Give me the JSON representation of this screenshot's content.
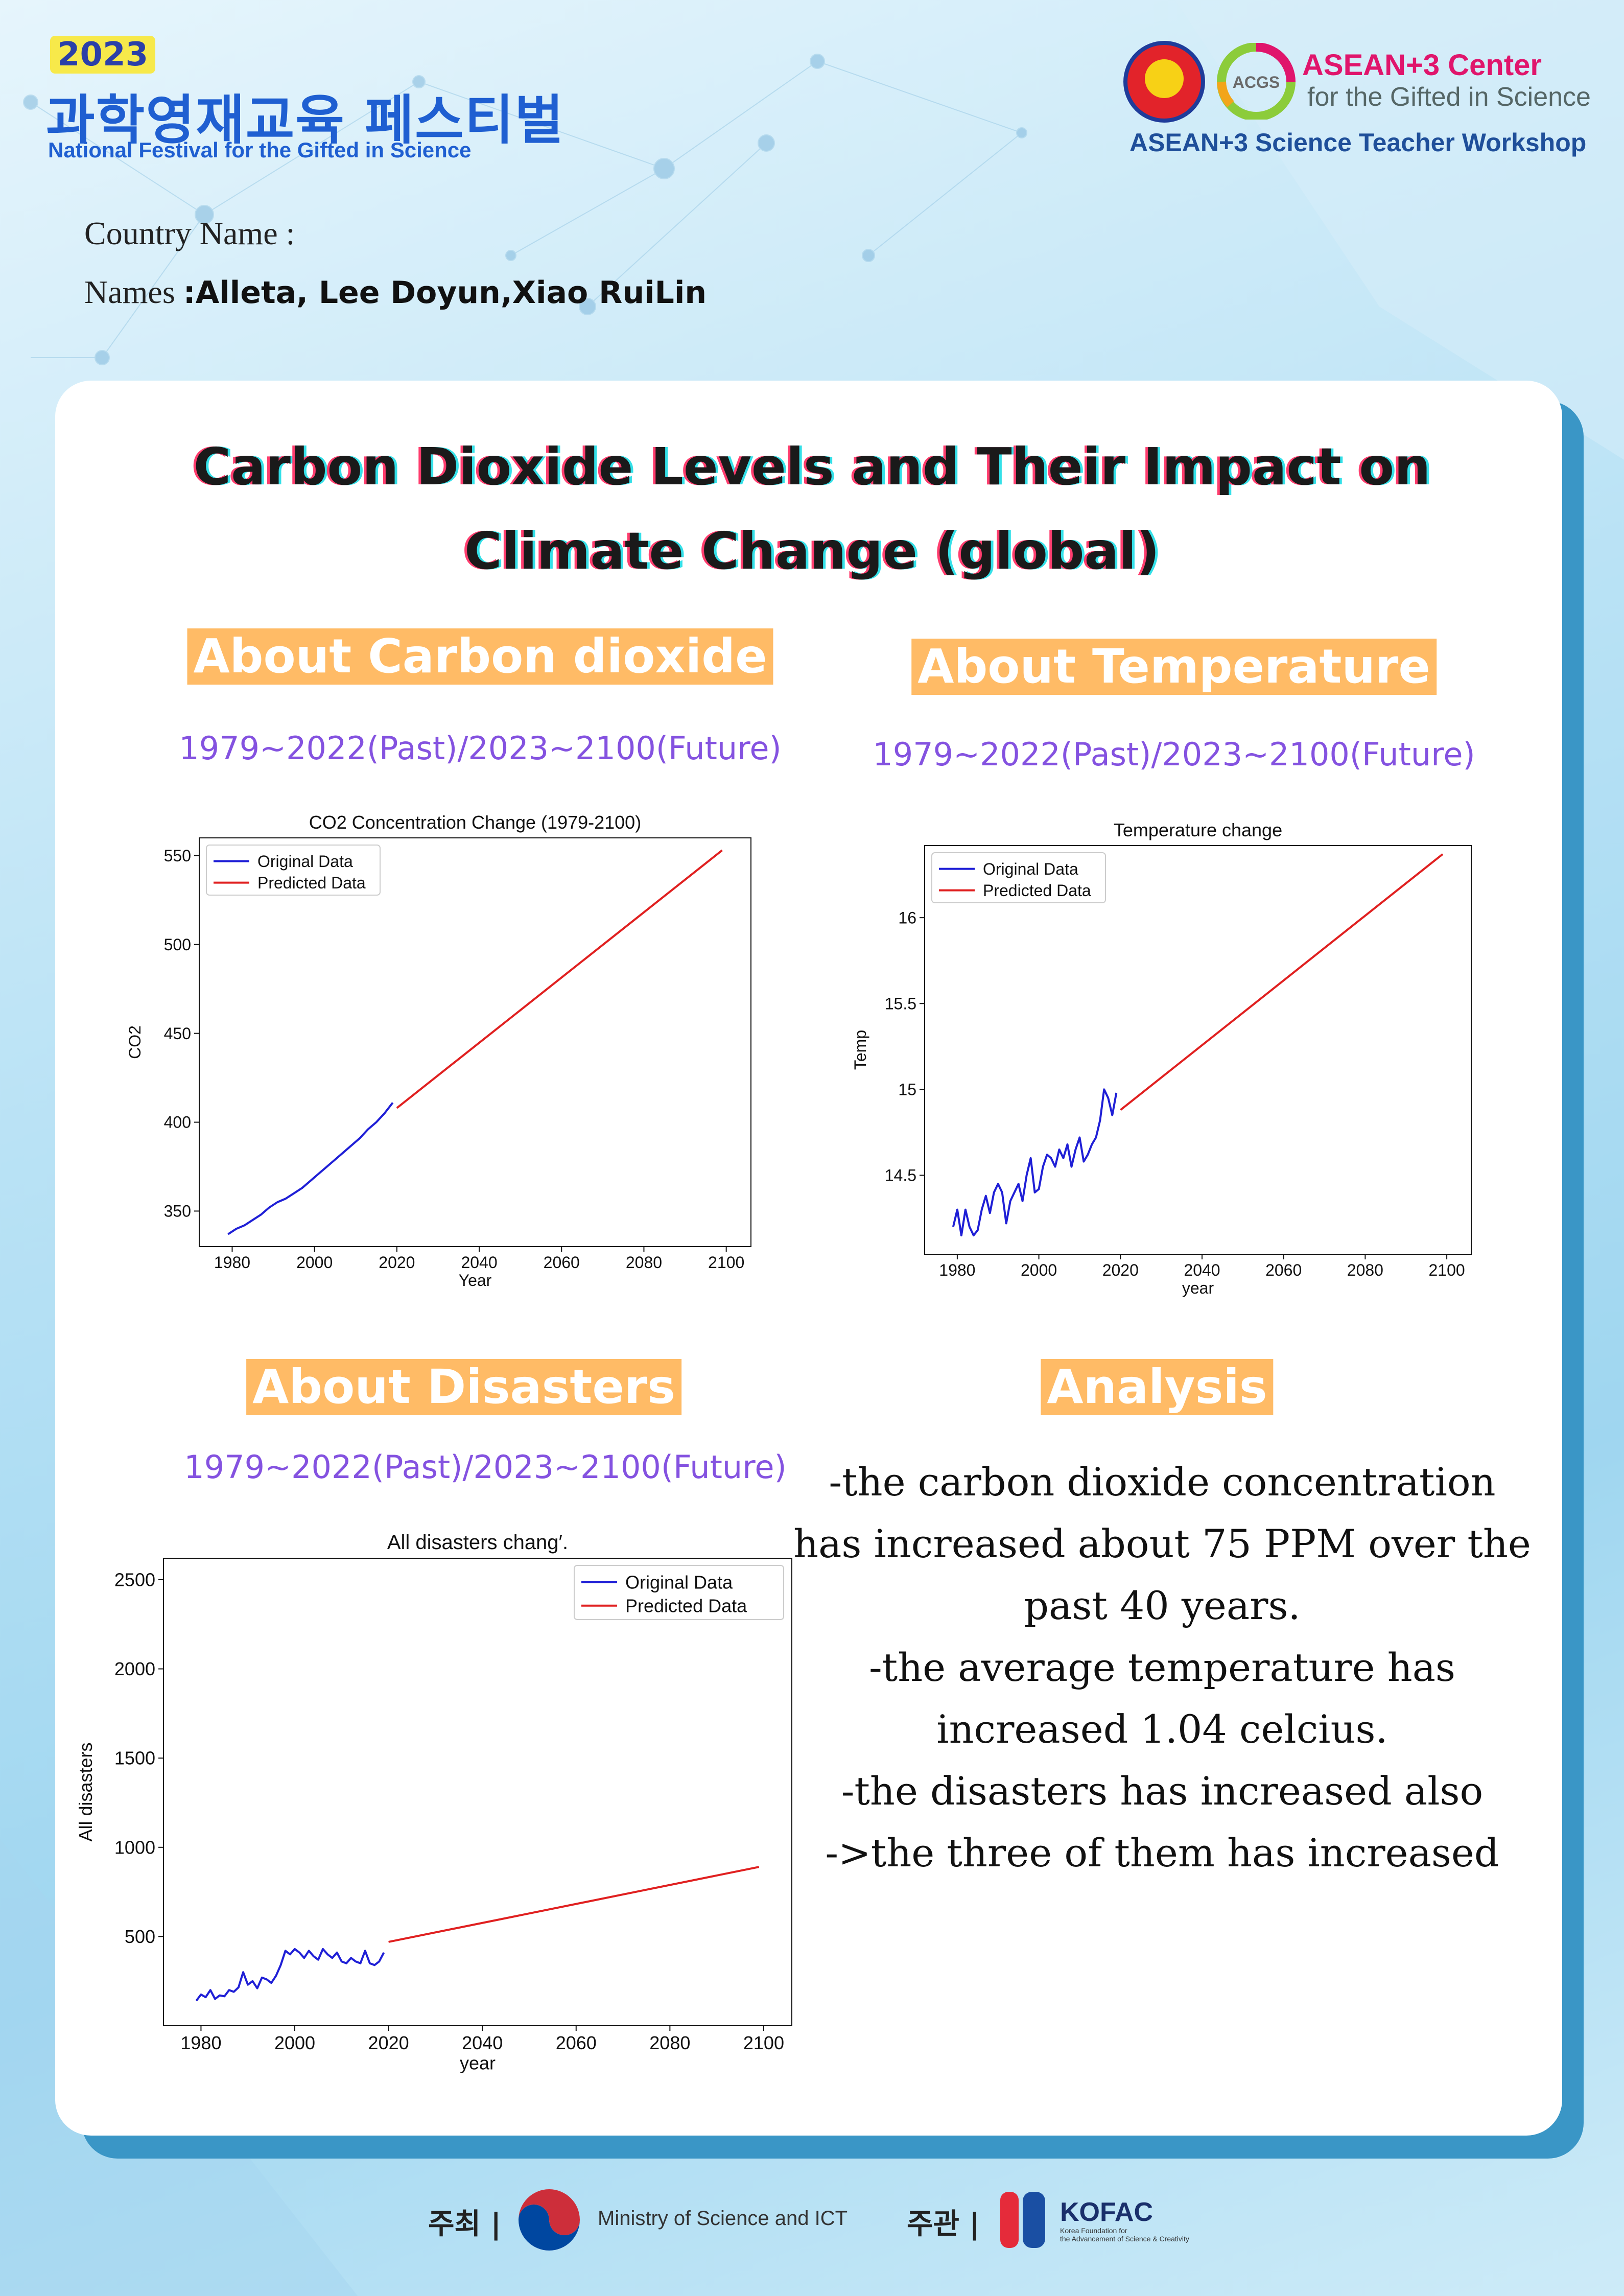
{
  "header": {
    "festival_year": "2023",
    "festival_title_korean": "과학영재교육 페스티벌",
    "festival_title_english": "National Festival for the Gifted in Science",
    "acgs_name": "ASEAN+3 Center",
    "acgs_subtitle": "for the Gifted in Science",
    "acgs_logo_text": "ACGS",
    "workshop": "ASEAN+3 Science Teacher Workshop",
    "country_label": "Country Name :",
    "names_label": "Names",
    "names_value": ":Alleta, Lee Doyun,Xiao RuiLin"
  },
  "poster": {
    "title_line1": "Carbon Dioxide  Levels and Their Impact on",
    "title_line2": "Climate Change (global)",
    "sections": {
      "co2": {
        "heading": "About Carbon dioxide",
        "subheading": "1979~2022(Past)/2023~2100(Future)"
      },
      "temp": {
        "heading": "About Temperature",
        "subheading": "1979~2022(Past)/2023~2100(Future)"
      },
      "disasters": {
        "heading": "About Disasters ",
        "subheading": "1979~2022(Past)/2023~2100(Future)"
      },
      "analysis": {
        "heading": "Analysis"
      }
    },
    "analysis_lines": [
      "-the carbon dioxide concentration",
      "has increased about 75 PPM over the",
      "past 40 years.",
      "-the average temperature has",
      "increased 1.04 celcius.",
      "-the disasters has increased also",
      "->the three of them has increased"
    ]
  },
  "footer": {
    "host_label": "주최 |",
    "host_name": "Ministry of Science and ICT",
    "organizer_label": "주관 |",
    "organizer_name": "KOFAC",
    "organizer_sub1": "Korea Foundation for",
    "organizer_sub2": "the Advancement of Science & Creativity"
  },
  "chart_data": [
    {
      "type": "line",
      "title": "CO2 Concentration Change (1979-2100)",
      "xlabel": "Year",
      "ylabel": "CO2",
      "xlim": [
        1972,
        2106
      ],
      "ylim": [
        330,
        560
      ],
      "xticks": [
        1980,
        2000,
        2020,
        2040,
        2060,
        2080,
        2100
      ],
      "yticks": [
        350,
        400,
        450,
        500,
        550
      ],
      "legend_position": "top-left",
      "series": [
        {
          "name": "Original Data",
          "color": "#1f1fd6",
          "x": [
            1979,
            1981,
            1983,
            1985,
            1987,
            1989,
            1991,
            1993,
            1995,
            1997,
            1999,
            2001,
            2003,
            2005,
            2007,
            2009,
            2011,
            2013,
            2015,
            2017,
            2019
          ],
          "y": [
            337,
            340,
            342,
            345,
            348,
            352,
            355,
            357,
            360,
            363,
            367,
            371,
            375,
            379,
            383,
            387,
            391,
            396,
            400,
            405,
            411
          ]
        },
        {
          "name": "Predicted Data",
          "color": "#e02020",
          "x": [
            2020,
            2099
          ],
          "y": [
            408,
            553
          ]
        }
      ]
    },
    {
      "type": "line",
      "title": "Temperature change",
      "xlabel": "year",
      "ylabel": "Temp",
      "xlim": [
        1972,
        2106
      ],
      "ylim": [
        14.04,
        16.42
      ],
      "xticks": [
        1980,
        2000,
        2020,
        2040,
        2060,
        2080,
        2100
      ],
      "yticks": [
        14.5,
        15.0,
        15.5,
        16.0
      ],
      "legend_position": "top-left",
      "series": [
        {
          "name": "Original Data",
          "color": "#1f1fd6",
          "x": [
            1979,
            1980,
            1981,
            1982,
            1983,
            1984,
            1985,
            1986,
            1987,
            1988,
            1989,
            1990,
            1991,
            1992,
            1993,
            1994,
            1995,
            1996,
            1997,
            1998,
            1999,
            2000,
            2001,
            2002,
            2003,
            2004,
            2005,
            2006,
            2007,
            2008,
            2009,
            2010,
            2011,
            2012,
            2013,
            2014,
            2015,
            2016,
            2017,
            2018,
            2019
          ],
          "y": [
            14.2,
            14.3,
            14.15,
            14.3,
            14.2,
            14.15,
            14.18,
            14.3,
            14.38,
            14.28,
            14.4,
            14.45,
            14.4,
            14.22,
            14.35,
            14.4,
            14.45,
            14.35,
            14.5,
            14.6,
            14.4,
            14.42,
            14.55,
            14.62,
            14.6,
            14.55,
            14.65,
            14.6,
            14.68,
            14.55,
            14.65,
            14.72,
            14.58,
            14.62,
            14.68,
            14.72,
            14.82,
            15.0,
            14.95,
            14.85,
            14.98
          ]
        },
        {
          "name": "Predicted Data",
          "color": "#e02020",
          "x": [
            2020,
            2099
          ],
          "y": [
            14.88,
            16.37
          ]
        }
      ]
    },
    {
      "type": "line",
      "title": "All disasters chang′.",
      "xlabel": "year",
      "ylabel": "All disasters",
      "xlim": [
        1972,
        2106
      ],
      "ylim": [
        0,
        2620
      ],
      "xticks": [
        1980,
        2000,
        2020,
        2040,
        2060,
        2080,
        2100
      ],
      "yticks": [
        500,
        1000,
        1500,
        2000,
        2500
      ],
      "legend_position": "top-right",
      "series": [
        {
          "name": "Original Data",
          "color": "#1f1fd6",
          "x": [
            1979,
            1980,
            1981,
            1982,
            1983,
            1984,
            1985,
            1986,
            1987,
            1988,
            1989,
            1990,
            1991,
            1992,
            1993,
            1994,
            1995,
            1996,
            1997,
            1998,
            1999,
            2000,
            2001,
            2002,
            2003,
            2004,
            2005,
            2006,
            2007,
            2008,
            2009,
            2010,
            2011,
            2012,
            2013,
            2014,
            2015,
            2016,
            2017,
            2018,
            2019
          ],
          "y": [
            140,
            175,
            160,
            200,
            150,
            170,
            165,
            200,
            190,
            215,
            300,
            230,
            250,
            210,
            270,
            260,
            240,
            280,
            340,
            420,
            400,
            430,
            410,
            380,
            420,
            390,
            370,
            430,
            400,
            380,
            410,
            360,
            350,
            380,
            360,
            350,
            420,
            350,
            340,
            360,
            410
          ]
        },
        {
          "name": "Predicted Data",
          "color": "#e02020",
          "x": [
            2020,
            2099
          ],
          "y": [
            470,
            890
          ]
        }
      ]
    }
  ]
}
